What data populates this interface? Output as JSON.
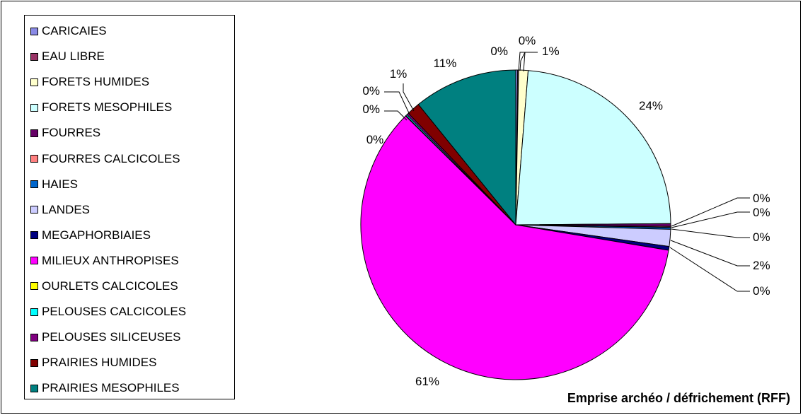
{
  "chart_data": {
    "type": "pie",
    "title": "Emprise archéo / défrichement (RFF)",
    "legend_position": "left",
    "series": [
      {
        "name": "CARICAIES",
        "value": 0.2,
        "label": "0%",
        "color": "#8A8AE6"
      },
      {
        "name": "EAU LIBRE",
        "value": 0.1,
        "label": "0%",
        "color": "#993366"
      },
      {
        "name": "FORETS HUMIDES",
        "value": 1.0,
        "label": "1%",
        "color": "#FFFFCC"
      },
      {
        "name": "FORETS MESOPHILES",
        "value": 24.0,
        "label": "24%",
        "color": "#CCFFFF"
      },
      {
        "name": "FOURRES",
        "value": 0.3,
        "label": "0%",
        "color": "#660066"
      },
      {
        "name": "FOURRES CALCICOLES",
        "value": 0.1,
        "label": "0%",
        "color": "#FF8080"
      },
      {
        "name": "HAIES",
        "value": 0.2,
        "label": "0%",
        "color": "#0066CC"
      },
      {
        "name": "LANDES",
        "value": 1.8,
        "label": "2%",
        "color": "#CCCCFF"
      },
      {
        "name": "MEGAPHORBIAIES",
        "value": 0.4,
        "label": "0%",
        "color": "#000080"
      },
      {
        "name": "MILIEUX ANTHROPISES",
        "value": 60.8,
        "label": "61%",
        "color": "#FF00FF"
      },
      {
        "name": "OURLETS CALCICOLES",
        "value": 0.05,
        "label": "0%",
        "color": "#FFFF00"
      },
      {
        "name": "PELOUSES CALCICOLES",
        "value": 0.15,
        "label": "0%",
        "color": "#00FFFF"
      },
      {
        "name": "PELOUSES SILICEUSES",
        "value": 0.2,
        "label": "0%",
        "color": "#800080"
      },
      {
        "name": "PRAIRIES HUMIDES",
        "value": 1.4,
        "label": "1%",
        "color": "#800000"
      },
      {
        "name": "PRAIRIES MESOPHILES",
        "value": 11.0,
        "label": "11%",
        "color": "#008080"
      }
    ]
  }
}
